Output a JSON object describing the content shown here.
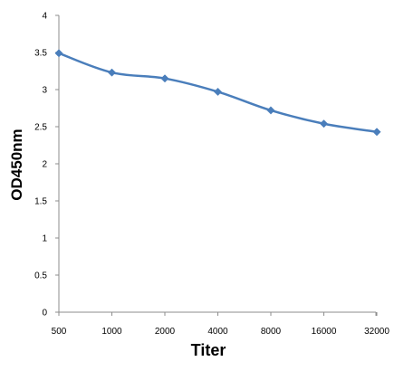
{
  "chart_data": {
    "type": "line",
    "title": "",
    "xlabel": "Titer",
    "ylabel": "OD450nm",
    "categories": [
      "500",
      "1000",
      "2000",
      "4000",
      "8000",
      "16000",
      "32000"
    ],
    "series": [
      {
        "values": [
          3.49,
          3.23,
          3.15,
          2.97,
          2.72,
          2.54,
          2.43
        ],
        "color": "#4a7ebb",
        "marker": "diamond"
      }
    ],
    "ylim": [
      0,
      4
    ],
    "yticks": [
      "0",
      "0.5",
      "1",
      "1.5",
      "2",
      "2.5",
      "3",
      "3.5",
      "4"
    ],
    "grid": false,
    "legend": "none"
  }
}
